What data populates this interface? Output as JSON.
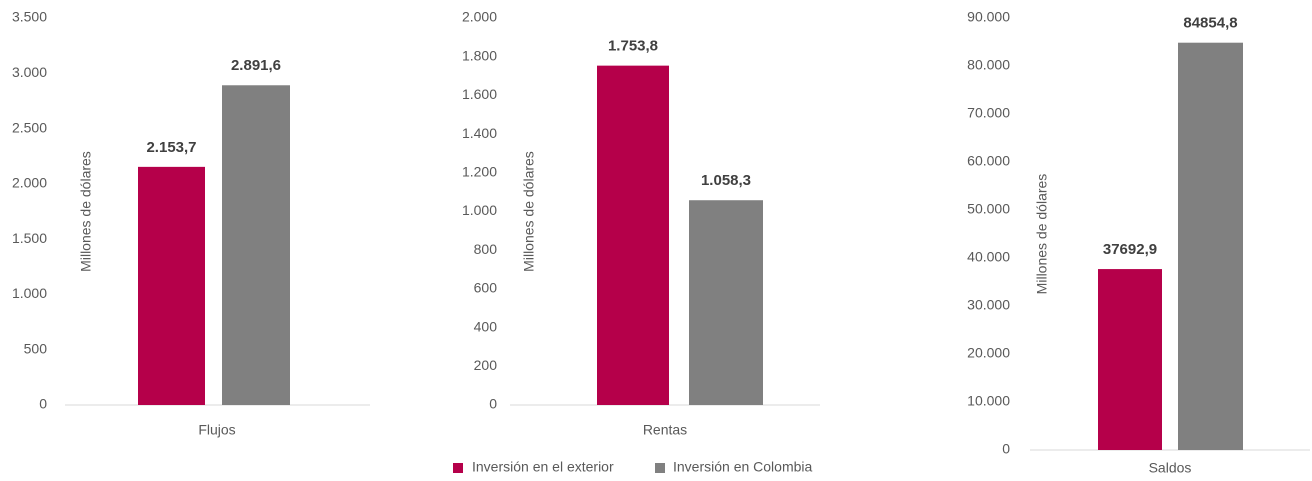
{
  "chart_data": [
    {
      "type": "bar",
      "categories": [
        "Flujos"
      ],
      "y_label": "Millones de dólares",
      "series": [
        {
          "color": "#b5004a",
          "values": [
            2153.7
          ],
          "value_labels": [
            "2.153,7"
          ]
        },
        {
          "color": "#808080",
          "values": [
            2891.6
          ],
          "value_labels": [
            "2.891,6"
          ]
        }
      ],
      "ylim": [
        0,
        3500
      ],
      "yticks": [
        0,
        500,
        {
          "value": 1000,
          "label": "1.000"
        },
        {
          "value": 1500,
          "label": "1.500"
        },
        {
          "value": 2000,
          "label": "2.000"
        },
        {
          "value": 2500,
          "label": "2.500"
        },
        {
          "value": 3000,
          "label": "3.000"
        },
        {
          "value": 3500,
          "label": "3.500"
        }
      ]
    },
    {
      "type": "bar",
      "categories": [
        "Rentas"
      ],
      "y_label": "Millones de dólares",
      "series": [
        {
          "name": "Inversión en el exterior",
          "color": "#b5004a",
          "values": [
            1753.8
          ],
          "value_labels": [
            "1.753,8"
          ]
        },
        {
          "name": "Inversión en Colombia",
          "color": "#808080",
          "values": [
            1058.3
          ],
          "value_labels": [
            "1.058,3"
          ]
        }
      ],
      "ylim": [
        0,
        2000
      ],
      "yticks": [
        0,
        200,
        400,
        600,
        800,
        {
          "value": 1000,
          "label": "1.000"
        },
        {
          "value": 1200,
          "label": "1.200"
        },
        {
          "value": 1400,
          "label": "1.400"
        },
        {
          "value": 1600,
          "label": "1.600"
        },
        {
          "value": 1800,
          "label": "1.800"
        },
        {
          "value": 2000,
          "label": "2.000"
        }
      ],
      "legend": "bottom"
    },
    {
      "type": "bar",
      "categories": [
        "Saldos"
      ],
      "y_label": "Millones de dólares",
      "series": [
        {
          "color": "#b5004a",
          "values": [
            37692.9
          ],
          "value_labels": [
            "37692,9"
          ]
        },
        {
          "color": "#808080",
          "values": [
            84854.8
          ],
          "value_labels": [
            "84854,8"
          ]
        }
      ],
      "ylim": [
        0,
        90000
      ],
      "yticks": [
        0,
        {
          "value": 10000,
          "label": "10.000"
        },
        {
          "value": 20000,
          "label": "20.000"
        },
        {
          "value": 30000,
          "label": "30.000"
        },
        {
          "value": 40000,
          "label": "40.000"
        },
        {
          "value": 50000,
          "label": "50.000"
        },
        {
          "value": 60000,
          "label": "60.000"
        },
        {
          "value": 70000,
          "label": "70.000"
        },
        {
          "value": 80000,
          "label": "80.000"
        },
        {
          "value": 90000,
          "label": "90.000"
        }
      ]
    }
  ]
}
